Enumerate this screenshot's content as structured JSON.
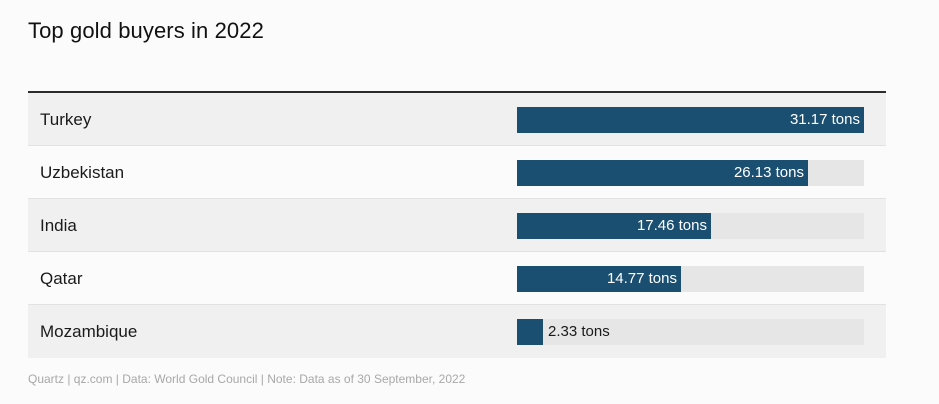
{
  "chart_data": {
    "type": "bar",
    "orientation": "horizontal",
    "title": "Top gold buyers in 2022",
    "categories": [
      "Turkey",
      "Uzbekistan",
      "India",
      "Qatar",
      "Mozambique"
    ],
    "values": [
      31.17,
      26.13,
      17.46,
      14.77,
      2.33
    ],
    "value_labels": [
      "31.17 tons",
      "26.13 tons",
      "17.46 tons",
      "14.77 tons",
      "2.33 tons"
    ],
    "xlim": [
      0,
      31.17
    ],
    "grid": false,
    "legend": "none",
    "colors": {
      "bar": "#1b4f72",
      "track": "#e6e6e6"
    }
  },
  "footer": "Quartz | qz.com | Data: World Gold Council | Note: Data as of 30 September, 2022"
}
